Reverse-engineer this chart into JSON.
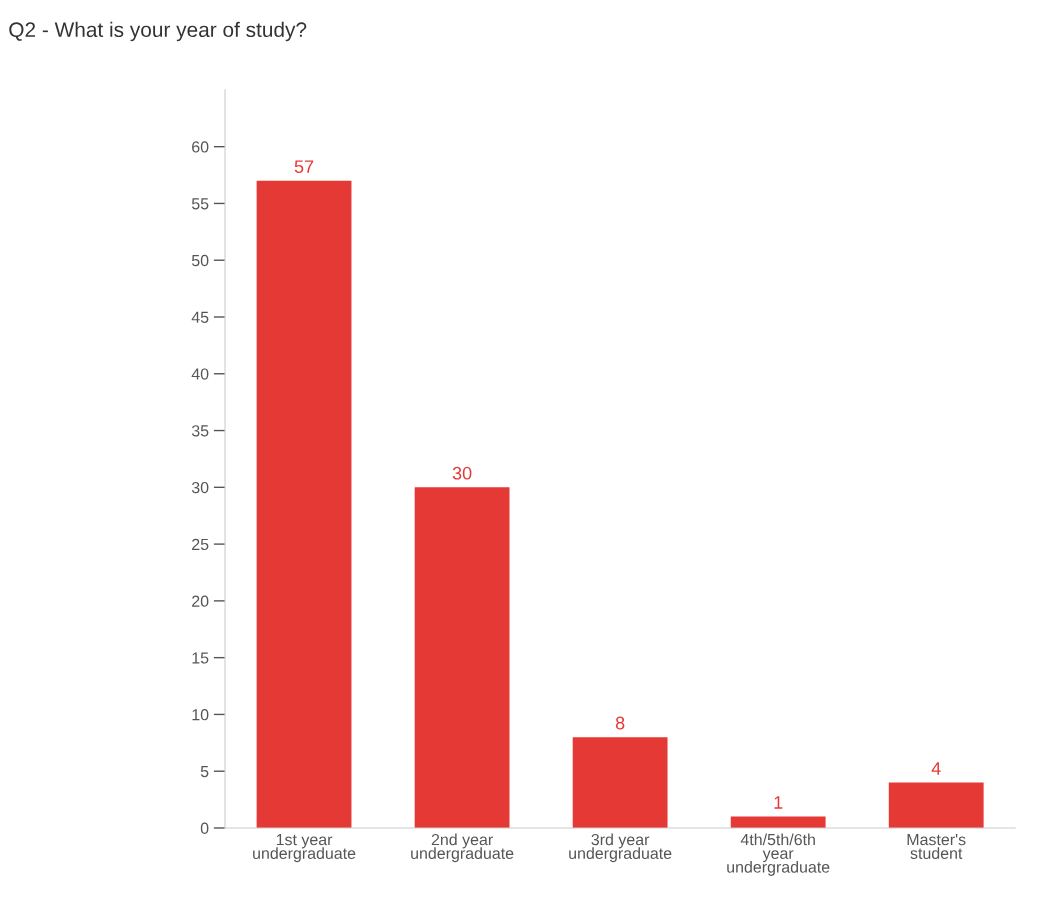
{
  "chart_data": {
    "type": "bar",
    "title": "Q2 - What is your year of study?",
    "categories": [
      "1st year undergraduate",
      "2nd year undergraduate",
      "3rd year undergraduate",
      "4th/5th/6th year undergraduate",
      "Master's student"
    ],
    "values": [
      57,
      30,
      8,
      1,
      4
    ],
    "color": "#e53935",
    "ylim": [
      0,
      65
    ],
    "yticks": [
      0,
      5,
      10,
      15,
      20,
      25,
      30,
      35,
      40,
      45,
      50,
      55,
      60
    ],
    "data_labels": true,
    "grid": false,
    "legend": false
  }
}
